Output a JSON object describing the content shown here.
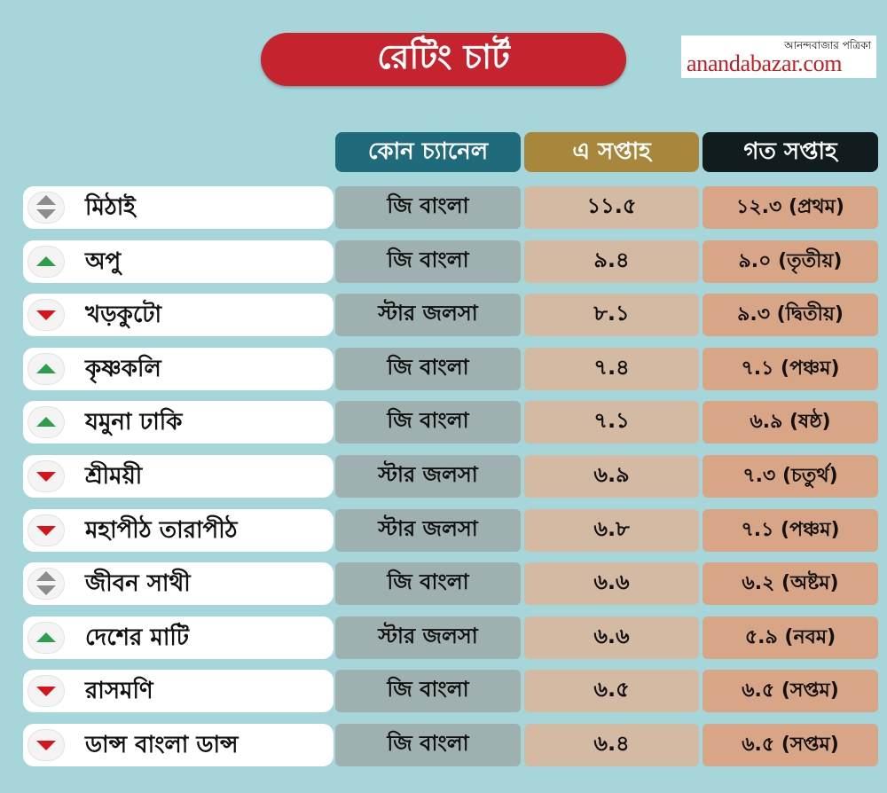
{
  "header": {
    "title": "রেটিং চার্ট",
    "logo_top": "আনন্দবাজার পত্রিকা",
    "logo_main": "anandabazar.com"
  },
  "chart_data": {
    "type": "table",
    "columns": [
      "",
      "কোন চ্যানেল",
      "এ সপ্তাহ",
      "গত সপ্তাহ"
    ],
    "rows": [
      {
        "trend": "same",
        "name": "মিঠাই",
        "channel": "জি বাংলা",
        "this_week": "১১.৫",
        "last_week": "১২.৩ (প্রথম)"
      },
      {
        "trend": "up",
        "name": "অপু",
        "channel": "জি বাংলা",
        "this_week": "৯.৪",
        "last_week": "৯.০ (তৃতীয়)"
      },
      {
        "trend": "down",
        "name": "খড়কুটো",
        "channel": "স্টার জলসা",
        "this_week": "৮.১",
        "last_week": "৯.৩ (দ্বিতীয়)"
      },
      {
        "trend": "up",
        "name": "কৃষ্ণকলি",
        "channel": "জি বাংলা",
        "this_week": "৭.৪",
        "last_week": "৭.১ (পঞ্চম)"
      },
      {
        "trend": "up",
        "name": "যমুনা ঢাকি",
        "channel": "জি বাংলা",
        "this_week": "৭.১",
        "last_week": "৬.৯ (ষষ্ঠ)"
      },
      {
        "trend": "down",
        "name": "শ্রীময়ী",
        "channel": "স্টার জলসা",
        "this_week": "৬.৯",
        "last_week": "৭.৩ (চতুর্থ)"
      },
      {
        "trend": "down",
        "name": "মহাপীঠ তারাপীঠ",
        "channel": "স্টার জলসা",
        "this_week": "৬.৮",
        "last_week": "৭.১ (পঞ্চম)"
      },
      {
        "trend": "same",
        "name": "জীবন সাথী",
        "channel": "জি বাংলা",
        "this_week": "৬.৬",
        "last_week": "৬.২ (অষ্টম)"
      },
      {
        "trend": "up",
        "name": "দেশের মাটি",
        "channel": "স্টার জলসা",
        "this_week": "৬.৬",
        "last_week": "৫.৯ (নবম)"
      },
      {
        "trend": "down",
        "name": "রাসমণি",
        "channel": "জি বাংলা",
        "this_week": "৬.৫",
        "last_week": "৬.৫ (সপ্তম)"
      },
      {
        "trend": "down",
        "name": "ডান্স বাংলা ডান্স",
        "channel": "জি বাংলা",
        "this_week": "৬.৪",
        "last_week": "৬.৫ (সপ্তম)"
      }
    ]
  },
  "colors": {
    "background": "#a6d5da",
    "title_pill": "#c5232d",
    "up": "#2e9e4a",
    "down": "#d7141c",
    "same": "#8c8c8c"
  }
}
